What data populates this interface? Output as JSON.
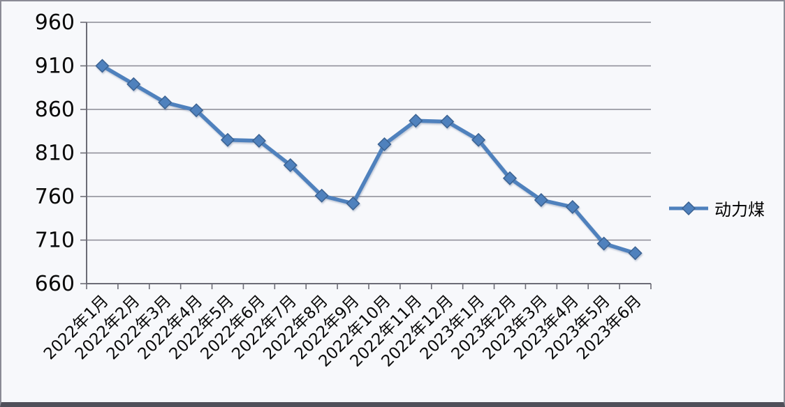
{
  "window": {
    "background_color": "#f7f8fb",
    "frame_border_color": "#8b8b95",
    "bottom_bar_color": "#4f4f59"
  },
  "chart_data": {
    "type": "line",
    "title": "",
    "xlabel": "",
    "ylabel": "",
    "ylim": [
      660,
      960
    ],
    "y_ticks": [
      660,
      710,
      760,
      810,
      860,
      910,
      960
    ],
    "grid": "horizontal-only",
    "legend_position": "right-middle",
    "axis_color": "#6c6c76",
    "gridline_color": "#8a8a94",
    "tick_label_color": "#0a0a0a",
    "categories": [
      "2022年1月",
      "2022年2月",
      "2022年3月",
      "2022年4月",
      "2022年5月",
      "2022年6月",
      "2022年7月",
      "2022年8月",
      "2022年9月",
      "2022年10月",
      "2022年11月",
      "2022年12月",
      "2023年1月",
      "2023年2月",
      "2023年3月",
      "2023年4月",
      "2023年5月",
      "2023年6月"
    ],
    "series": [
      {
        "name": "动力煤",
        "color": "#4f81bd",
        "marker": "diamond",
        "marker_edge_color": "#3a6191",
        "values": [
          910,
          889,
          868,
          859,
          825,
          824,
          796,
          761,
          752,
          820,
          847,
          846,
          825,
          781,
          756,
          748,
          706,
          695
        ]
      }
    ]
  }
}
